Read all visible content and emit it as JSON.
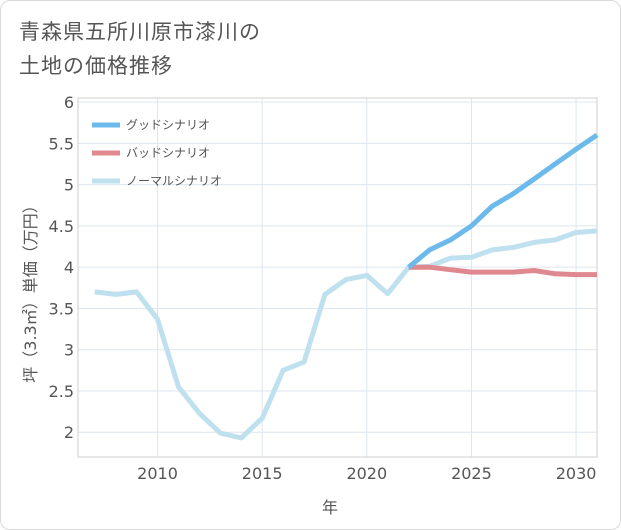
{
  "chart_data": {
    "type": "line",
    "title_lines": [
      "青森県五所川原市漆川の",
      "土地の価格推移"
    ],
    "xlabel": "年",
    "ylabel": "坪（3.3㎡）単価（万円）",
    "xlim": [
      2006.2,
      2031
    ],
    "ylim": [
      1.7,
      6.05
    ],
    "xticks": [
      2010,
      2015,
      2020,
      2025,
      2030
    ],
    "yticks": [
      2,
      2.5,
      3,
      3.5,
      4,
      4.5,
      5,
      5.5,
      6
    ],
    "xtick_labels": [
      "2010",
      "2015",
      "2020",
      "2025",
      "2030"
    ],
    "ytick_labels": [
      "2",
      "2.5",
      "3",
      "3.5",
      "4",
      "4.5",
      "5",
      "5.5",
      "6"
    ],
    "series": [
      {
        "name": "グッドシナリオ",
        "color": "#6cb9ec",
        "x": [
          2022,
          2023,
          2024,
          2025,
          2026,
          2027,
          2028,
          2029,
          2030,
          2031
        ],
        "y": [
          4.0,
          4.21,
          4.33,
          4.5,
          4.74,
          4.89,
          5.07,
          5.25,
          5.43,
          5.6
        ]
      },
      {
        "name": "バッドシナリオ",
        "color": "#e0888f",
        "x": [
          2022,
          2023,
          2024,
          2025,
          2026,
          2027,
          2028,
          2029,
          2030,
          2031
        ],
        "y": [
          4.0,
          4.0,
          3.97,
          3.94,
          3.94,
          3.94,
          3.96,
          3.92,
          3.91,
          3.91
        ]
      },
      {
        "name": "ノーマルシナリオ",
        "color": "#bfe0ef",
        "x": [
          2007,
          2008,
          2009,
          2010,
          2011,
          2012,
          2013,
          2014,
          2015,
          2016,
          2017,
          2018,
          2019,
          2020,
          2021,
          2022,
          2023,
          2024,
          2025,
          2026,
          2027,
          2028,
          2029,
          2030,
          2031
        ],
        "y": [
          3.7,
          3.67,
          3.7,
          3.37,
          2.55,
          2.23,
          1.99,
          1.93,
          2.17,
          2.75,
          2.85,
          3.67,
          3.85,
          3.9,
          3.68,
          4.0,
          4.01,
          4.11,
          4.12,
          4.21,
          4.24,
          4.3,
          4.33,
          4.42,
          4.44
        ]
      }
    ],
    "legend_position": "top-left",
    "grid": true
  }
}
